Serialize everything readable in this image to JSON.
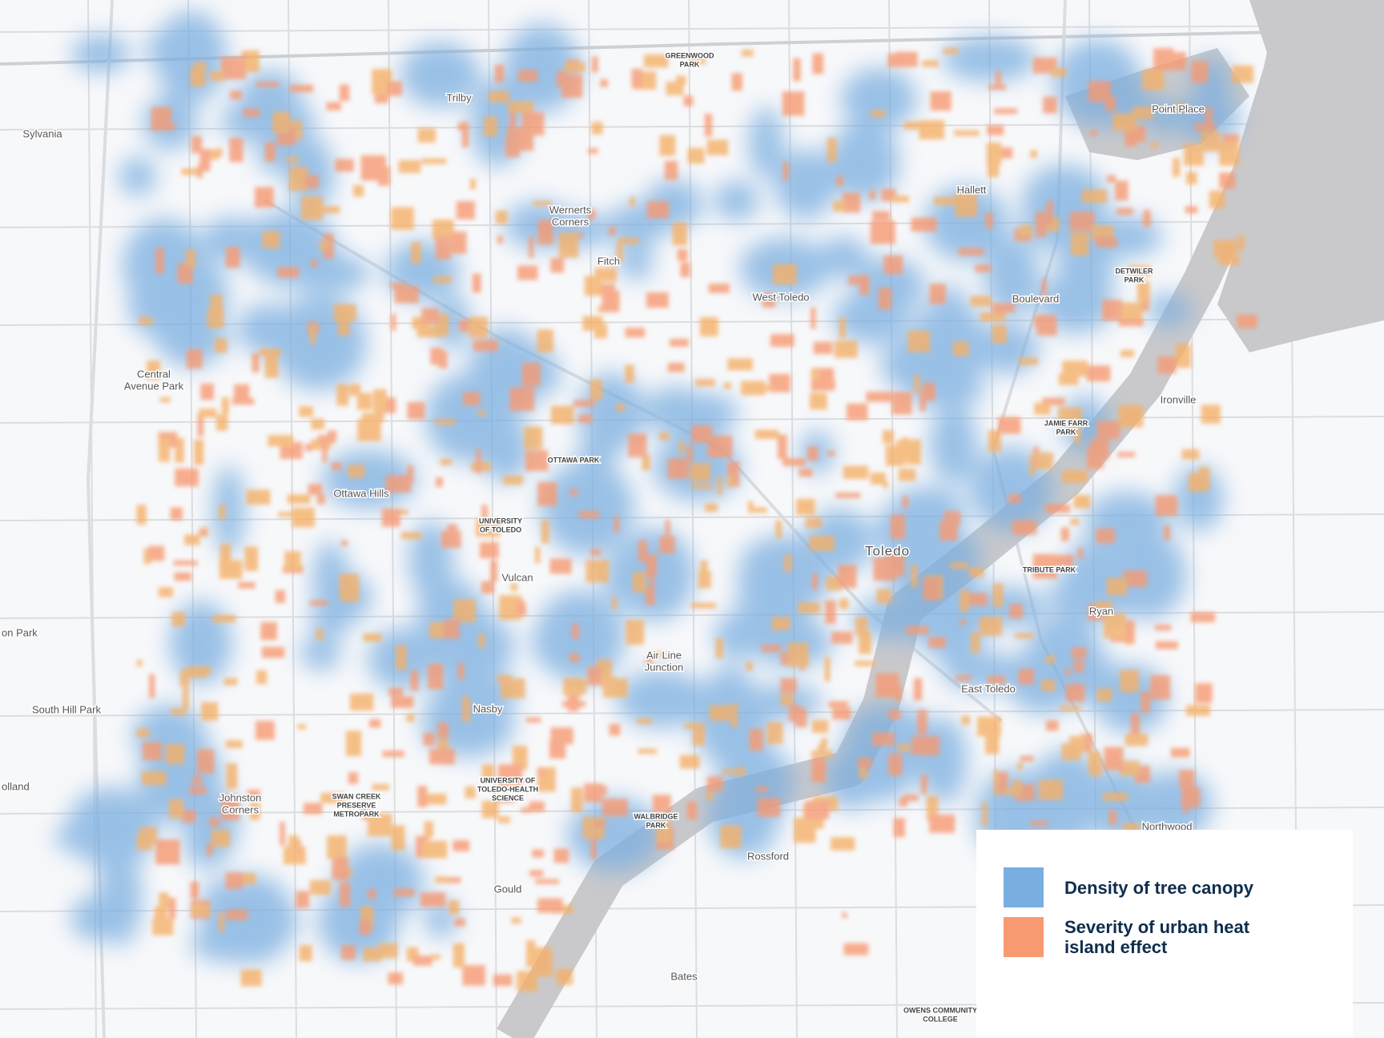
{
  "places": [
    [
      "Sylvania"
    ],
    [
      "Trilby"
    ],
    [
      "GREENWOOD",
      "PARK"
    ],
    [
      "Point Place"
    ],
    [
      "Hallett"
    ],
    [
      "Wernerts",
      "Corners"
    ],
    [
      "Fitch"
    ],
    [
      "West Toledo"
    ],
    [
      "Boulevard"
    ],
    [
      "DETWILER",
      "PARK"
    ],
    [
      "Central",
      "Avenue Park"
    ],
    [
      "Ironville"
    ],
    [
      "JAMIE FARR",
      "PARK"
    ],
    [
      "OTTAWA PARK"
    ],
    [
      "Ottawa Hills"
    ],
    [
      "UNIVERSITY",
      "OF TOLEDO"
    ],
    [
      "Toledo"
    ],
    [
      "TRIBUTE PARK"
    ],
    [
      "Vulcan"
    ],
    [
      "Ryan"
    ],
    [
      "on Park"
    ],
    [
      "Air Line",
      "Junction"
    ],
    [
      "East Toledo"
    ],
    [
      "South Hill Park"
    ],
    [
      "Nasby"
    ],
    [
      "olland"
    ],
    [
      "UNIVERSITY OF",
      "TOLEDO-HEALTH",
      "SCIENCE"
    ],
    [
      "Johnston",
      "Corners"
    ],
    [
      "SWAN CREEK",
      "PRESERVE",
      "METROPARK"
    ],
    [
      "WALBRIDGE",
      "PARK"
    ],
    [
      "Northwood"
    ],
    [
      "Rossford"
    ],
    [
      "Gould"
    ],
    [
      "Bates"
    ],
    [
      "OWENS COMMUNITY",
      "COLLEGE"
    ]
  ],
  "legend": {
    "items": [
      {
        "label": "Density of tree canopy",
        "color": "#7aaee0"
      },
      {
        "label": "Severity of urban heat island effect",
        "color": "#f79a72"
      }
    ]
  }
}
